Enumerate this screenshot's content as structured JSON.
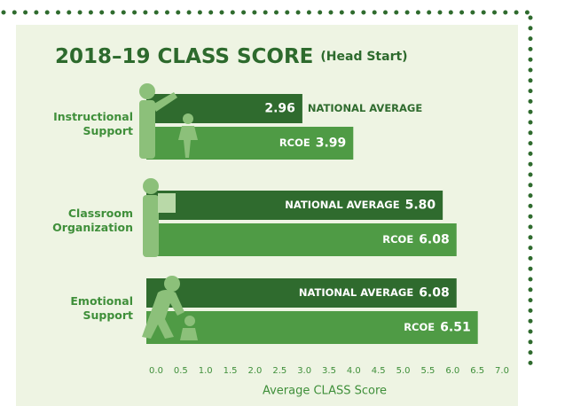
{
  "chart_data": {
    "type": "bar",
    "orientation": "horizontal",
    "title": "2018–19 CLASS SCORE",
    "subtitle": "(Head Start)",
    "categories": [
      "Instructional Support",
      "Classroom Organization",
      "Emotional Support"
    ],
    "series": [
      {
        "name": "NATIONAL AVERAGE",
        "color": "#2f6b2e",
        "values": [
          2.96,
          5.8,
          6.08
        ],
        "value_labels": [
          "2.96",
          "5.80",
          "6.08"
        ]
      },
      {
        "name": "RCOE",
        "color": "#4f9b45",
        "values": [
          3.99,
          6.08,
          6.51
        ],
        "value_labels": [
          "3.99",
          "6.08",
          "6.51"
        ]
      }
    ],
    "x_label": "Average CLASS Score",
    "xlim": [
      0,
      7
    ],
    "xticks": [
      {
        "value": 0,
        "label": "0.0"
      },
      0.5,
      {
        "value": 1,
        "label": "1.0"
      },
      1.5,
      {
        "value": 2,
        "label": "2.0"
      },
      2.5,
      {
        "value": 3,
        "label": "3.0"
      },
      3.5,
      {
        "value": 4,
        "label": "4.0"
      },
      4.5,
      {
        "value": 5,
        "label": "5.0"
      },
      5.5,
      {
        "value": 6,
        "label": "6.0"
      },
      6.5,
      {
        "value": 7,
        "label": "7.0"
      }
    ],
    "grid": false
  }
}
